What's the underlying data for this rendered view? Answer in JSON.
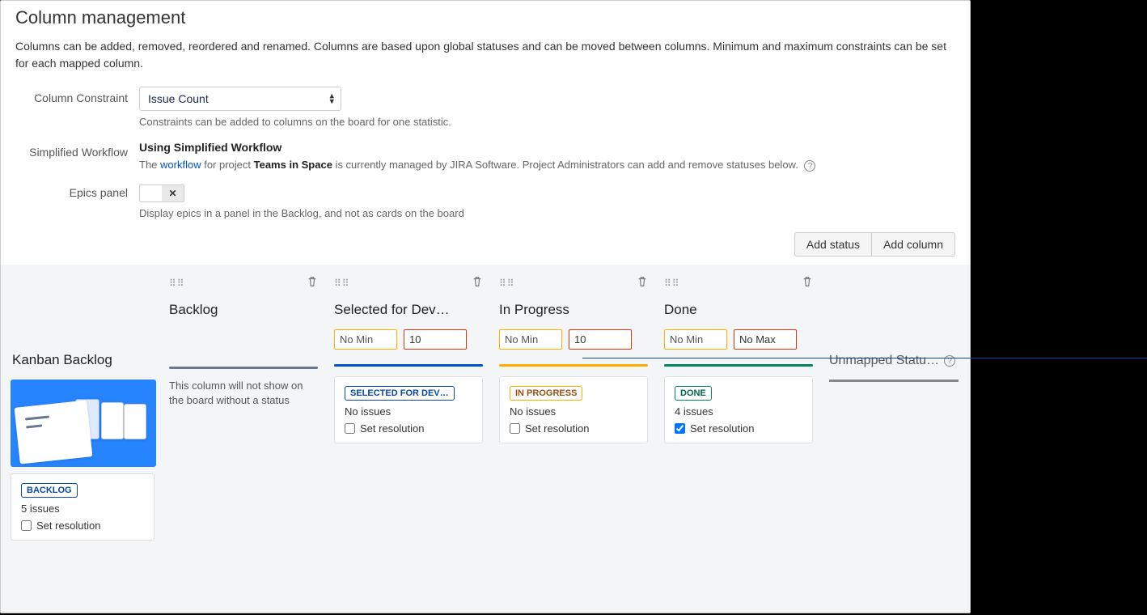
{
  "header": {
    "title": "Column management",
    "description": "Columns can be added, removed, reordered and renamed. Columns are based upon global statuses and can be moved between columns. Minimum and maximum constraints can be set for each mapped column."
  },
  "form": {
    "constraint_label": "Column Constraint",
    "constraint_value": "Issue Count",
    "constraint_hint": "Constraints can be added to columns on the board for one statistic.",
    "workflow_label": "Simplified Workflow",
    "workflow_value": "Using Simplified Workflow",
    "workflow_pre": "The ",
    "workflow_link": "workflow",
    "workflow_mid": " for project ",
    "workflow_project": "Teams in Space",
    "workflow_post": " is currently managed by JIRA Software. Project Administrators can add and remove statuses below.",
    "epics_label": "Epics panel",
    "epics_hint": "Display epics in a panel in the Backlog, and not as cards on the board",
    "add_status_label": "Add status",
    "add_column_label": "Add column"
  },
  "kanban": {
    "title": "Kanban Backlog",
    "card": {
      "status_label": "BACKLOG",
      "issues": "5 issues",
      "set_resolution": "Set resolution",
      "checked": false
    }
  },
  "columns": [
    {
      "title": "Backlog",
      "min": "No Min",
      "max": null,
      "bar_class": "bar-grey",
      "note": "This column will not show on the board without a status",
      "status_card": null
    },
    {
      "title": "Selected for Dev…",
      "min": "No Min",
      "max": "10",
      "bar_class": "bar-blue",
      "note": null,
      "status_card": {
        "label": "SELECTED FOR DEV…",
        "loz_class": "loz-blue",
        "issues": "No issues",
        "set_resolution": "Set resolution",
        "checked": false
      }
    },
    {
      "title": "In Progress",
      "min": "No Min",
      "max": "10",
      "bar_class": "bar-yellow",
      "note": null,
      "status_card": {
        "label": "IN PROGRESS",
        "loz_class": "loz-yellow",
        "issues": "No issues",
        "set_resolution": "Set resolution",
        "checked": false
      }
    },
    {
      "title": "Done",
      "min": "No Min",
      "max": "No Max",
      "bar_class": "bar-green",
      "note": null,
      "status_card": {
        "label": "DONE",
        "loz_class": "loz-green",
        "issues": "4 issues",
        "set_resolution": "Set resolution",
        "checked": true
      }
    }
  ],
  "unmapped": {
    "title": "Unmapped Statu…"
  },
  "colors": {
    "accent_blue": "#0052cc",
    "yellow": "#ffab00",
    "green": "#00875a",
    "red": "#de350b",
    "grey": "#6b778c",
    "bg_board": "#f4f5f7"
  }
}
